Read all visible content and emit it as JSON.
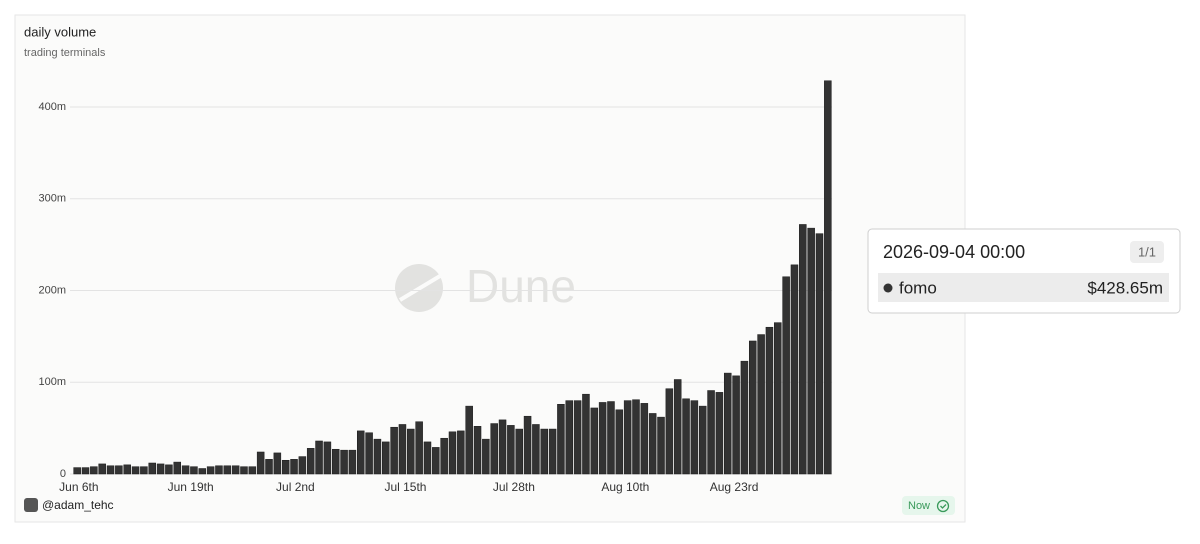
{
  "chart_data": {
    "type": "bar",
    "title": "daily volume",
    "subtitle": "trading terminals",
    "watermark": "Dune",
    "categories": [
      "Jun 6th",
      null,
      null,
      null,
      null,
      null,
      null,
      null,
      null,
      null,
      null,
      null,
      null,
      "Jun 19th",
      null,
      null,
      null,
      null,
      null,
      null,
      null,
      null,
      null,
      null,
      null,
      null,
      "Jul 2nd",
      null,
      null,
      null,
      null,
      null,
      null,
      null,
      null,
      null,
      null,
      null,
      null,
      "Jul 15th",
      null,
      null,
      null,
      null,
      null,
      null,
      null,
      null,
      null,
      null,
      null,
      null,
      "Jul 28th",
      null,
      null,
      null,
      null,
      null,
      null,
      null,
      null,
      null,
      null,
      null,
      null,
      "Aug 10th",
      null,
      null,
      null,
      null,
      null,
      null,
      null,
      null,
      null,
      null,
      null,
      null,
      "Aug 23rd",
      null,
      null,
      null,
      null,
      null,
      null,
      null,
      null,
      null,
      null,
      null,
      null
    ],
    "series": [
      {
        "name": "fomo",
        "color": "#333333",
        "values": [
          7,
          7,
          8,
          11,
          9,
          9,
          10,
          8,
          8,
          12,
          11,
          10,
          13,
          9,
          8,
          6,
          8,
          9,
          9,
          9,
          8,
          8,
          24,
          16,
          23,
          15,
          16,
          19,
          28,
          36,
          35,
          27,
          26,
          26,
          47,
          45,
          38,
          35,
          51,
          54,
          49,
          57,
          35,
          29,
          39,
          46,
          47,
          74,
          52,
          38,
          55,
          59,
          53,
          49,
          63,
          54,
          49,
          49,
          76,
          80,
          80,
          87,
          72,
          78,
          79,
          70,
          80,
          81,
          77,
          66,
          62,
          93,
          103,
          82,
          80,
          74,
          91,
          89,
          110,
          107,
          123,
          145,
          152,
          160,
          165,
          215,
          228,
          272,
          268,
          262,
          428.65
        ]
      }
    ],
    "ylim": [
      0,
      430
    ],
    "yticks": [
      0,
      {
        "value": 100,
        "label": "100m"
      },
      {
        "value": 200,
        "label": "200m"
      },
      {
        "value": 300,
        "label": "300m"
      },
      {
        "value": 400,
        "label": "400m"
      }
    ],
    "grid": true,
    "tooltip": {
      "title": "2026-09-04 00:00",
      "counter": "1/1",
      "value_label": "$428.65m"
    }
  },
  "footer": {
    "author": "@adam_tehc",
    "status": "Now"
  }
}
